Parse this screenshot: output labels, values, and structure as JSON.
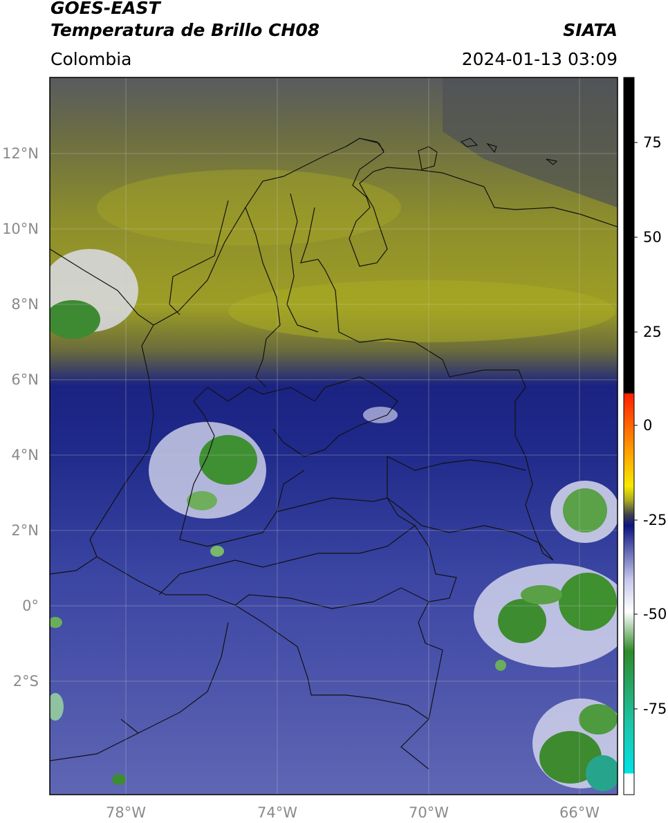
{
  "header": {
    "satellite": "GOES-EAST",
    "product": "Temperatura de Brillo CH08",
    "brand": "SIATA",
    "region": "Colombia",
    "timestamp": "2024-01-13 03:09"
  },
  "axes": {
    "lat_labels": [
      "12°N",
      "10°N",
      "8°N",
      "6°N",
      "4°N",
      "2°N",
      "0°",
      "2°S"
    ],
    "lat_values": [
      12,
      10,
      8,
      6,
      4,
      2,
      0,
      -2
    ],
    "lon_labels": [
      "78°W",
      "74°W",
      "70°W",
      "66°W"
    ],
    "lon_values": [
      -78,
      -74,
      -70,
      -66
    ],
    "extent": {
      "lon_min": -80,
      "lon_max": -65,
      "lat_min": -5,
      "lat_max": 14
    },
    "grid": true
  },
  "colorbar": {
    "tick_labels": [
      "75",
      "50",
      "25",
      "0",
      "-25",
      "-50",
      "-75"
    ],
    "tick_values": [
      75,
      50,
      25,
      0,
      -25,
      -50,
      -75
    ],
    "range": [
      -95,
      90
    ],
    "unit_label": "",
    "colors": {
      "warm": "#000000",
      "red": "#ff2000",
      "orange": "#ff9d00",
      "yellow": "#f7ea00",
      "olive": "#a8a822",
      "dark": "#3b3f4c",
      "navy": "#0d1680",
      "lavender": "#c6c7ec",
      "white": "#ffffff",
      "green": "#2f8a2a",
      "teal": "#1ec4a6",
      "cyan": "#00e2e6"
    }
  }
}
